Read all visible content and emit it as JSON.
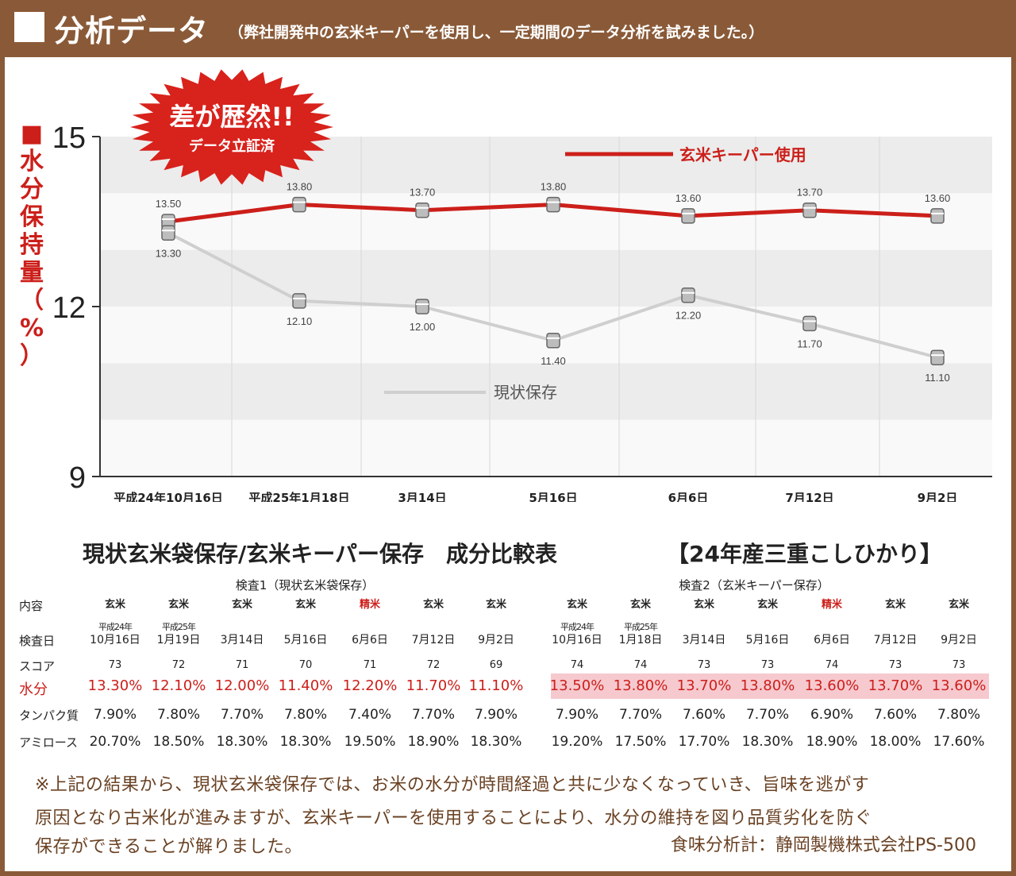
{
  "header": {
    "title": "分析データ",
    "subtitle": "（弊社開発中の玄米キーパーを使用し、一定期間のデータ分析を試みました。）"
  },
  "badge": {
    "line1": "差が歴然!!",
    "line2": "データ立証済"
  },
  "chart_data": {
    "type": "line",
    "ylabel": "■水分保持量（%）",
    "ylim": [
      9,
      15
    ],
    "yticks": [
      "15",
      "12",
      "9"
    ],
    "categories": [
      "平成24年10月16日",
      "平成25年1月18日",
      "3月14日",
      "5月16日",
      "6月6日",
      "7月12日",
      "9月2日"
    ],
    "series": [
      {
        "name": "玄米キーパー使用",
        "color": "#cc1f1a",
        "values": [
          13.5,
          13.8,
          13.7,
          13.8,
          13.6,
          13.7,
          13.6
        ],
        "labels": [
          "13.50",
          "13.80",
          "13.70",
          "13.80",
          "13.60",
          "13.70",
          "13.60"
        ]
      },
      {
        "name": "現状保存",
        "color": "#cfcfcf",
        "values": [
          13.3,
          12.1,
          12.0,
          11.4,
          12.2,
          11.7,
          11.1
        ],
        "labels": [
          "13.30",
          "12.10",
          "12.00",
          "11.40",
          "12.20",
          "11.70",
          "11.10"
        ]
      }
    ],
    "grid": true,
    "legend_placement": "inline"
  },
  "table": {
    "title": "現状玄米袋保存/玄米キーパー保存　成分比較表",
    "region_label": "【24年産三重こしひかり】",
    "group1": "検査1（現状玄米袋保存）",
    "group2": "検査2（玄米キーパー保存）",
    "row_labels": [
      "内容",
      "検査日",
      "スコア",
      "水分",
      "タンパク質",
      "アミロース"
    ],
    "types": [
      "玄米",
      "玄米",
      "玄米",
      "玄米",
      "精米",
      "玄米",
      "玄米"
    ],
    "dates": [
      [
        "平成24年",
        "10月16日"
      ],
      [
        "平成25年",
        "1月19日"
      ],
      [
        "",
        "3月14日"
      ],
      [
        "",
        "5月16日"
      ],
      [
        "",
        "6月6日"
      ],
      [
        "",
        "7月12日"
      ],
      [
        "",
        "9月2日"
      ]
    ],
    "dates2": [
      [
        "平成24年",
        "10月16日"
      ],
      [
        "平成25年",
        "1月18日"
      ],
      [
        "",
        "3月14日"
      ],
      [
        "",
        "5月16日"
      ],
      [
        "",
        "6月6日"
      ],
      [
        "",
        "7月12日"
      ],
      [
        "",
        "9月2日"
      ]
    ],
    "score1": [
      "73",
      "72",
      "71",
      "70",
      "71",
      "72",
      "69"
    ],
    "score2": [
      "74",
      "74",
      "73",
      "73",
      "74",
      "73",
      "73"
    ],
    "moisture1": [
      "13.30%",
      "12.10%",
      "12.00%",
      "11.40%",
      "12.20%",
      "11.70%",
      "11.10%"
    ],
    "moisture2": [
      "13.50%",
      "13.80%",
      "13.70%",
      "13.80%",
      "13.60%",
      "13.70%",
      "13.60%"
    ],
    "protein1": [
      "7.90%",
      "7.80%",
      "7.70%",
      "7.80%",
      "7.40%",
      "7.70%",
      "7.90%"
    ],
    "protein2": [
      "7.90%",
      "7.70%",
      "7.60%",
      "7.70%",
      "6.90%",
      "7.60%",
      "7.80%"
    ],
    "amylose1": [
      "20.70%",
      "18.50%",
      "18.30%",
      "18.30%",
      "19.50%",
      "18.90%",
      "18.30%"
    ],
    "amylose2": [
      "19.20%",
      "17.50%",
      "17.70%",
      "18.30%",
      "18.90%",
      "18.00%",
      "17.60%"
    ]
  },
  "notes": {
    "line1": "※上記の結果から、現状玄米袋保存では、お米の水分が時間経過と共に少なくなっていき、旨味を逃がす",
    "line2": "原因となり古米化が進みますが、玄米キーパーを使用することにより、水分の維持を図り品質劣化を防ぐ",
    "line3": "保存ができることが解りました。",
    "meter": "食味分析計：静岡製機株式会社PS-500"
  },
  "colors": {
    "brown": "#8a5a38",
    "red": "#cc1f1a",
    "gray": "#cfcfcf",
    "band": "#f6c9cf"
  }
}
